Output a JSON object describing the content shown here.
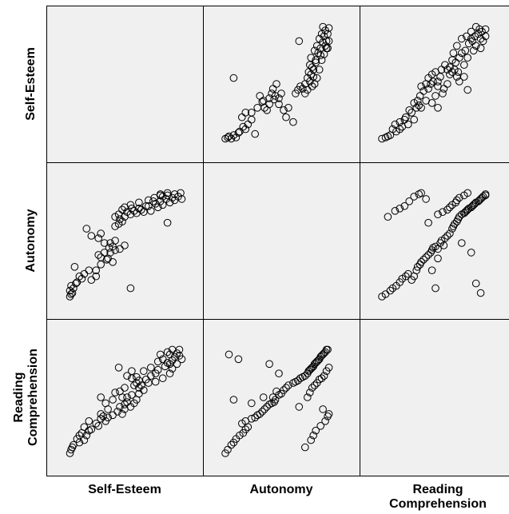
{
  "chart_data": {
    "type": "scatter",
    "variables": [
      "Self-Esteem",
      "Autonomy",
      "Reading Comprehension"
    ],
    "row_labels": [
      [
        "Self-Esteem"
      ],
      [
        "Autonomy"
      ],
      [
        "Reading",
        "Comprehension"
      ]
    ],
    "column_labels": [
      [
        "Self-Esteem"
      ],
      [
        "Autonomy"
      ],
      [
        "Reading",
        "Comprehension"
      ]
    ],
    "marker": "open-circle",
    "background": "#f0f0f0",
    "grid": false,
    "legend": "none",
    "diagonal": "empty",
    "pairs": {
      "Autonomy_vs_SelfEsteem": [
        [
          0.03,
          0.04
        ],
        [
          0.05,
          0.05
        ],
        [
          0.08,
          0.04
        ],
        [
          0.1,
          0.07
        ],
        [
          0.12,
          0.05
        ],
        [
          0.15,
          0.1
        ],
        [
          0.18,
          0.14
        ],
        [
          0.2,
          0.12
        ],
        [
          0.22,
          0.16
        ],
        [
          0.17,
          0.22
        ],
        [
          0.2,
          0.26
        ],
        [
          0.25,
          0.2
        ],
        [
          0.28,
          0.08
        ],
        [
          0.3,
          0.3
        ],
        [
          0.32,
          0.4
        ],
        [
          0.34,
          0.35
        ],
        [
          0.36,
          0.3
        ],
        [
          0.38,
          0.28
        ],
        [
          0.4,
          0.33
        ],
        [
          0.42,
          0.42
        ],
        [
          0.44,
          0.37
        ],
        [
          0.45,
          0.4
        ],
        [
          0.43,
          0.46
        ],
        [
          0.48,
          0.38
        ],
        [
          0.5,
          0.42
        ],
        [
          0.46,
          0.5
        ],
        [
          0.52,
          0.28
        ],
        [
          0.54,
          0.22
        ],
        [
          0.56,
          0.3
        ],
        [
          0.6,
          0.18
        ],
        [
          0.62,
          0.42
        ],
        [
          0.64,
          0.45
        ],
        [
          0.66,
          0.48
        ],
        [
          0.68,
          0.46
        ],
        [
          0.7,
          0.5
        ],
        [
          0.72,
          0.55
        ],
        [
          0.73,
          0.6
        ],
        [
          0.74,
          0.66
        ],
        [
          0.75,
          0.72
        ],
        [
          0.76,
          0.64
        ],
        [
          0.77,
          0.56
        ],
        [
          0.78,
          0.78
        ],
        [
          0.79,
          0.7
        ],
        [
          0.8,
          0.82
        ],
        [
          0.81,
          0.76
        ],
        [
          0.82,
          0.88
        ],
        [
          0.83,
          0.8
        ],
        [
          0.84,
          0.92
        ],
        [
          0.85,
          0.85
        ],
        [
          0.86,
          0.9
        ],
        [
          0.87,
          0.95
        ],
        [
          0.88,
          0.86
        ],
        [
          0.89,
          0.92
        ],
        [
          0.9,
          0.97
        ],
        [
          0.88,
          0.8
        ],
        [
          0.86,
          0.75
        ],
        [
          0.84,
          0.7
        ],
        [
          0.82,
          0.62
        ],
        [
          0.8,
          0.55
        ],
        [
          0.78,
          0.5
        ],
        [
          0.76,
          0.48
        ],
        [
          0.74,
          0.52
        ],
        [
          0.72,
          0.45
        ],
        [
          0.1,
          0.55
        ],
        [
          0.65,
          0.86
        ],
        [
          0.85,
          0.98
        ],
        [
          0.9,
          0.86
        ],
        [
          0.89,
          0.8
        ],
        [
          0.87,
          0.82
        ],
        [
          0.83,
          0.74
        ],
        [
          0.79,
          0.68
        ],
        [
          0.77,
          0.62
        ],
        [
          0.75,
          0.58
        ],
        [
          0.7,
          0.42
        ],
        [
          0.35,
          0.36
        ],
        [
          0.25,
          0.26
        ],
        [
          0.14,
          0.09
        ],
        [
          0.06,
          0.06
        ],
        [
          0.4,
          0.38
        ],
        [
          0.48,
          0.33
        ]
      ],
      "RC_vs_SelfEsteem": [
        [
          0.03,
          0.04
        ],
        [
          0.06,
          0.05
        ],
        [
          0.1,
          0.07
        ],
        [
          0.12,
          0.12
        ],
        [
          0.15,
          0.1
        ],
        [
          0.18,
          0.18
        ],
        [
          0.2,
          0.14
        ],
        [
          0.23,
          0.22
        ],
        [
          0.25,
          0.16
        ],
        [
          0.28,
          0.26
        ],
        [
          0.3,
          0.2
        ],
        [
          0.32,
          0.3
        ],
        [
          0.33,
          0.36
        ],
        [
          0.35,
          0.4
        ],
        [
          0.36,
          0.48
        ],
        [
          0.38,
          0.44
        ],
        [
          0.4,
          0.5
        ],
        [
          0.42,
          0.55
        ],
        [
          0.44,
          0.5
        ],
        [
          0.45,
          0.58
        ],
        [
          0.46,
          0.52
        ],
        [
          0.48,
          0.4
        ],
        [
          0.5,
          0.48
        ],
        [
          0.52,
          0.56
        ],
        [
          0.53,
          0.62
        ],
        [
          0.55,
          0.46
        ],
        [
          0.56,
          0.66
        ],
        [
          0.58,
          0.5
        ],
        [
          0.6,
          0.58
        ],
        [
          0.62,
          0.7
        ],
        [
          0.63,
          0.76
        ],
        [
          0.64,
          0.62
        ],
        [
          0.66,
          0.82
        ],
        [
          0.67,
          0.6
        ],
        [
          0.68,
          0.72
        ],
        [
          0.7,
          0.88
        ],
        [
          0.72,
          0.66
        ],
        [
          0.73,
          0.78
        ],
        [
          0.74,
          0.9
        ],
        [
          0.75,
          0.72
        ],
        [
          0.76,
          0.84
        ],
        [
          0.78,
          0.94
        ],
        [
          0.79,
          0.86
        ],
        [
          0.8,
          0.78
        ],
        [
          0.81,
          0.9
        ],
        [
          0.82,
          0.82
        ],
        [
          0.84,
          0.92
        ],
        [
          0.85,
          0.96
        ],
        [
          0.86,
          0.88
        ],
        [
          0.87,
          0.94
        ],
        [
          0.88,
          0.86
        ],
        [
          0.9,
          0.96
        ],
        [
          0.9,
          0.9
        ],
        [
          0.75,
          0.45
        ],
        [
          0.72,
          0.56
        ],
        [
          0.68,
          0.52
        ],
        [
          0.66,
          0.56
        ],
        [
          0.65,
          0.68
        ],
        [
          0.62,
          0.6
        ],
        [
          0.6,
          0.64
        ],
        [
          0.58,
          0.62
        ],
        [
          0.54,
          0.42
        ],
        [
          0.5,
          0.52
        ],
        [
          0.48,
          0.6
        ],
        [
          0.42,
          0.46
        ],
        [
          0.4,
          0.36
        ],
        [
          0.36,
          0.3
        ],
        [
          0.34,
          0.32
        ],
        [
          0.3,
          0.34
        ],
        [
          0.26,
          0.28
        ],
        [
          0.22,
          0.2
        ],
        [
          0.18,
          0.12
        ],
        [
          0.14,
          0.16
        ],
        [
          0.08,
          0.06
        ],
        [
          0.5,
          0.3
        ],
        [
          0.45,
          0.34
        ],
        [
          0.82,
          0.98
        ],
        [
          0.86,
          0.8
        ],
        [
          0.78,
          0.88
        ],
        [
          0.7,
          0.76
        ]
      ]
    }
  }
}
